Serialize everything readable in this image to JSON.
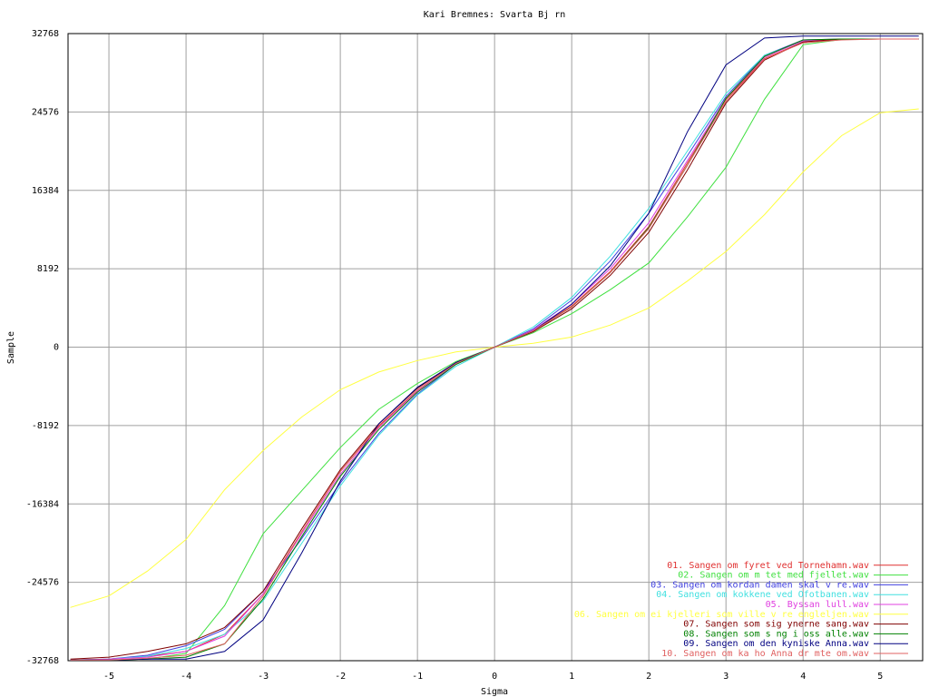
{
  "chart_data": {
    "type": "line",
    "title": "Kari Bremnes: Svarta Bj rn",
    "x_label": "Sigma",
    "y_label": "Sample",
    "x": [
      -5.5,
      -5,
      -4.5,
      -4,
      -3.5,
      -3,
      -2.5,
      -2,
      -1.5,
      -1,
      -0.5,
      0,
      0.5,
      1,
      1.5,
      2,
      2.5,
      3,
      3.5,
      4,
      4.5,
      5,
      5.5
    ],
    "xlim": [
      -5.53,
      5.55
    ],
    "xticks": [
      -5,
      -4,
      -3,
      -2,
      -1,
      0,
      1,
      2,
      3,
      4,
      5
    ],
    "ylim": [
      -32768,
      32768
    ],
    "yticks": [
      -32768,
      -24576,
      -16384,
      -8192,
      0,
      8192,
      16384,
      24576,
      32768
    ],
    "grid": true,
    "legend": "bottom-right",
    "series": [
      {
        "name": "01. Sangen om fyret ved Tornehamn.wav",
        "color": "#e03030",
        "values": [
          -32700,
          -32600,
          -32300,
          -31800,
          -30000,
          -25800,
          -19300,
          -13000,
          -8200,
          -4500,
          -1700,
          0,
          1700,
          4300,
          7900,
          12600,
          19250,
          25900,
          30160,
          31870,
          32150,
          32200,
          32200
        ]
      },
      {
        "name": "02. Sangen om m tet med fjellet.wav",
        "color": "#40e040",
        "values": [
          -32700,
          -32700,
          -32600,
          -32000,
          -27000,
          -19500,
          -15000,
          -10500,
          -6500,
          -3800,
          -1500,
          0,
          1500,
          3500,
          6000,
          8800,
          13600,
          18800,
          25900,
          31600,
          32150,
          32200,
          32200
        ]
      },
      {
        "name": "03. Sangen om kordan damen skal v re.wav",
        "color": "#4040e0",
        "values": [
          -32700,
          -32600,
          -32200,
          -31200,
          -29500,
          -25500,
          -20000,
          -14200,
          -9000,
          -4900,
          -1800,
          0,
          1900,
          4900,
          9000,
          14000,
          20000,
          26200,
          30500,
          32100,
          32200,
          32200,
          32200
        ]
      },
      {
        "name": "04. Sangen om kokkene ved Ofotbanen.wav",
        "color": "#40e0e0",
        "values": [
          -32700,
          -32600,
          -32300,
          -31500,
          -30000,
          -26500,
          -20500,
          -14500,
          -9200,
          -5000,
          -2000,
          0,
          2100,
          5200,
          9500,
          14500,
          20500,
          26500,
          30500,
          32000,
          32200,
          32200,
          32200
        ]
      },
      {
        "name": "05. Byssan lull.wav",
        "color": "#e040e0",
        "values": [
          -32700,
          -32600,
          -32400,
          -31800,
          -30200,
          -25800,
          -19500,
          -13300,
          -8400,
          -4600,
          -1700,
          0,
          1800,
          4500,
          8200,
          13000,
          19500,
          26000,
          30300,
          32000,
          32200,
          32200,
          32200
        ]
      },
      {
        "name": "06. Sangen om ei kjelleri som ville v re engleljen.wav",
        "color": "#ffff40",
        "values": [
          -27200,
          -26000,
          -23400,
          -20100,
          -14900,
          -10800,
          -7300,
          -4450,
          -2600,
          -1400,
          -500,
          0,
          400,
          1050,
          2300,
          4100,
          6900,
          10000,
          13850,
          18300,
          22100,
          24500,
          24900
        ]
      },
      {
        "name": "07. Sangen som sig ynerne sang.wav",
        "color": "#800000",
        "values": [
          -32600,
          -32400,
          -31800,
          -31000,
          -29300,
          -25500,
          -19000,
          -12800,
          -8000,
          -4300,
          -1600,
          0,
          1600,
          4000,
          7500,
          12000,
          18500,
          25500,
          30000,
          31900,
          32200,
          32200,
          32200
        ]
      },
      {
        "name": "08. Sangen som s ng i oss alle.wav",
        "color": "#008000",
        "values": [
          -32700,
          -32700,
          -32600,
          -32400,
          -31000,
          -26300,
          -19800,
          -13500,
          -8600,
          -4700,
          -1800,
          0,
          1700,
          4200,
          7800,
          12500,
          19000,
          26000,
          30400,
          32100,
          32200,
          32200,
          32200
        ]
      },
      {
        "name": "09. Sangen om den kyniske Anna.wav",
        "color": "#000080",
        "values": [
          -32700,
          -32700,
          -32600,
          -32600,
          -31800,
          -28500,
          -21500,
          -14000,
          -8000,
          -4200,
          -1600,
          0,
          1700,
          4500,
          8500,
          14000,
          22500,
          29500,
          32300,
          32500,
          32500,
          32500,
          32500
        ]
      },
      {
        "name": "10. Sangen om ka ho Anna dr mte om.wav",
        "color": "#e06060",
        "values": [
          -32700,
          -32700,
          -32500,
          -32200,
          -31000,
          -26000,
          -19300,
          -13000,
          -8300,
          -4500,
          -1700,
          0,
          1700,
          4200,
          7800,
          12400,
          19000,
          25700,
          30100,
          31800,
          32100,
          32200,
          32200
        ]
      }
    ]
  }
}
